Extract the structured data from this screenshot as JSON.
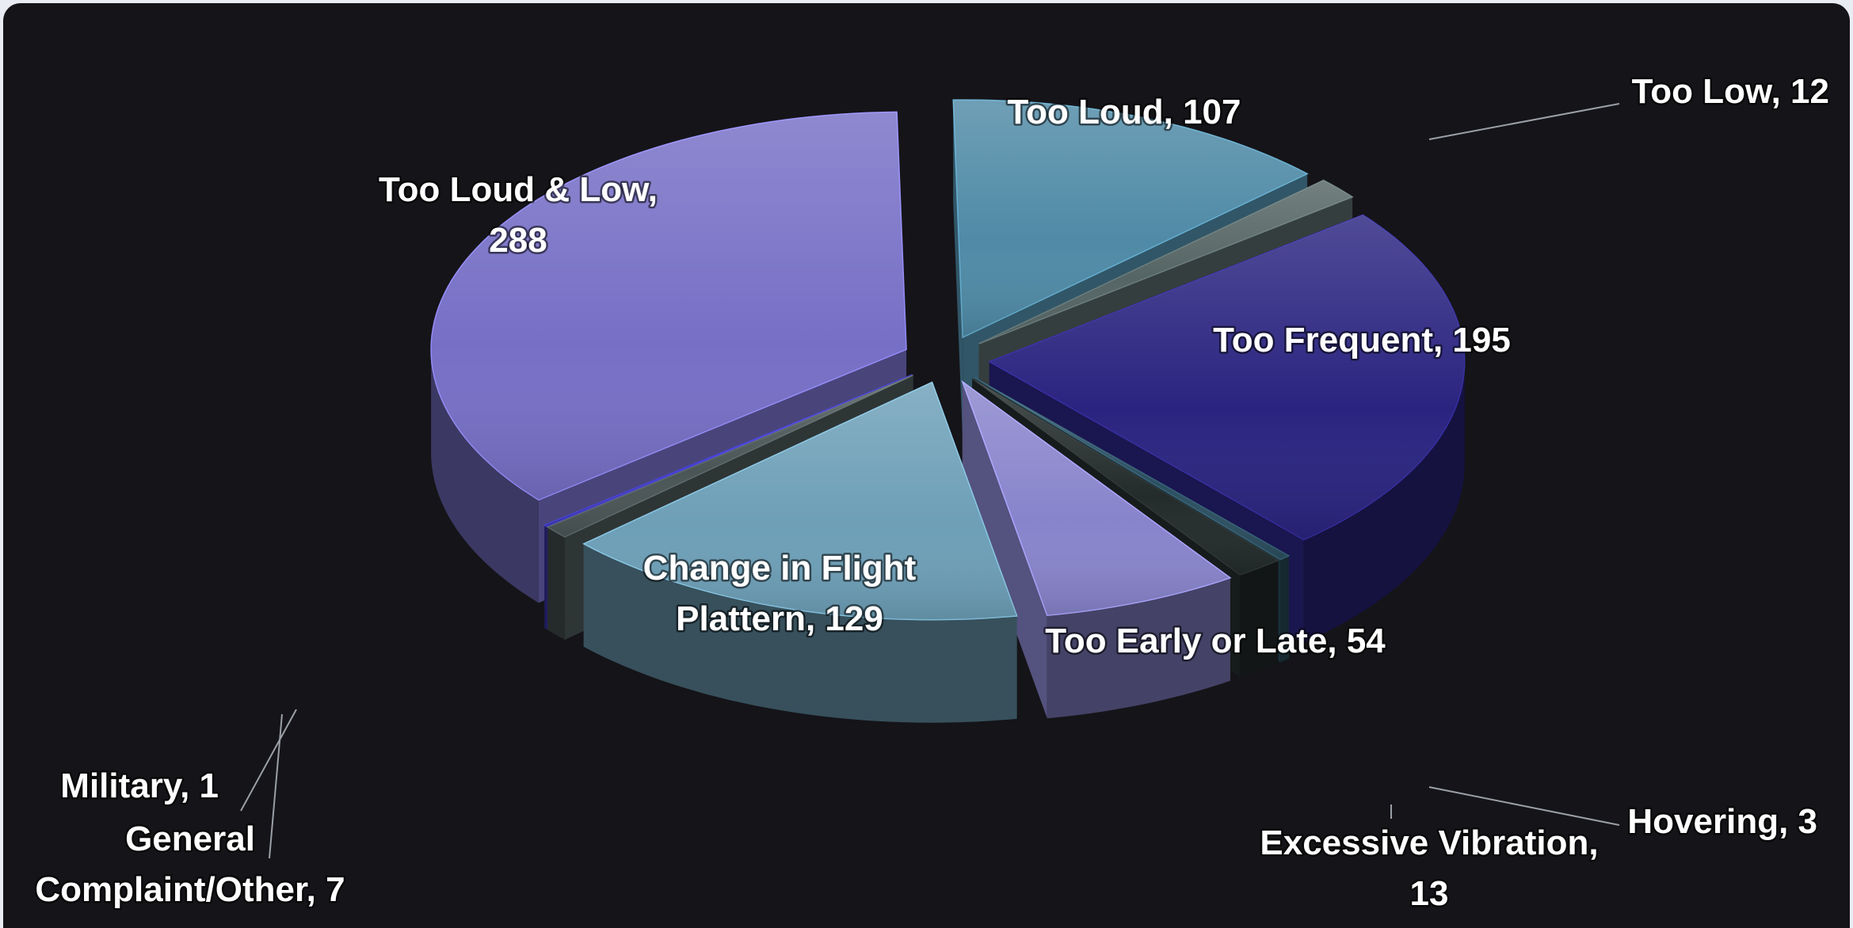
{
  "chart_data": {
    "type": "pie",
    "title": "",
    "slices": [
      {
        "label": "Too Loud",
        "value": 107,
        "color": "#4f8aa6",
        "label_lines": [
          "Too Loud, 107"
        ]
      },
      {
        "label": "Too Low",
        "value": 12,
        "color": "#556464",
        "label_lines": [
          "Too Low, 12"
        ]
      },
      {
        "label": "Too Frequent",
        "value": 195,
        "color": "#2a2480",
        "label_lines": [
          "Too Frequent, 195"
        ]
      },
      {
        "label": "Hovering",
        "value": 3,
        "color": "#2c4f60",
        "label_lines": [
          "Hovering, 3"
        ]
      },
      {
        "label": "Excessive Vibration",
        "value": 13,
        "color": "#232b2b",
        "label_lines": [
          "Excessive Vibration,",
          "13"
        ]
      },
      {
        "label": "Too Early or Late",
        "value": 54,
        "color": "#8884cc",
        "label_lines": [
          "Too Early or Late, 54"
        ]
      },
      {
        "label": "Change in Flight Plattern",
        "value": 129,
        "color": "#6d9fb7",
        "label_lines": [
          "Change in Flight",
          "Plattern, 129"
        ]
      },
      {
        "label": "General Complaint/Other",
        "value": 7,
        "color": "#4a5556",
        "label_lines": [
          "General",
          "Complaint/Other, 7"
        ]
      },
      {
        "label": "Military",
        "value": 1,
        "color": "#3a35b0",
        "label_lines": [
          "Military, 1"
        ]
      },
      {
        "label": "Too Loud & Low",
        "value": 288,
        "color": "#766fc6",
        "label_lines": [
          "Too Loud & Low,",
          "288"
        ]
      }
    ],
    "legend": "none",
    "style": "3d-exploded-pie",
    "background": "#151418"
  }
}
